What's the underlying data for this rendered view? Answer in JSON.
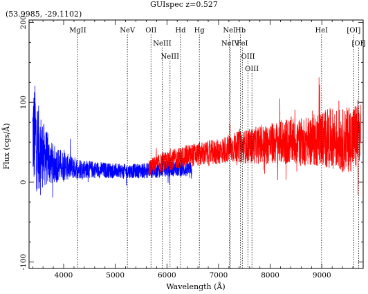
{
  "header": {
    "title": "GUIspec z=0.527",
    "coords": "(53.9985, -29.1102)"
  },
  "chart_data": {
    "type": "line",
    "title": "GUIspec z=0.527",
    "subtitle": "(53.9985, -29.1102)",
    "xlabel": "Wavelength (Å)",
    "ylabel": "Flux (cgs/Å)",
    "xlim": [
      3330,
      9800
    ],
    "ylim": [
      -108,
      203
    ],
    "xticks": [
      4000,
      5000,
      6000,
      7000,
      8000,
      9000
    ],
    "yticks": [
      -100,
      0,
      100,
      200
    ],
    "grid": false,
    "series": [
      {
        "color": "#0000ff",
        "envelope": {
          "x": [
            3400,
            3450,
            3500,
            3550,
            3600,
            3700,
            3800,
            3900,
            4000,
            4200,
            4500,
            4800,
            5100,
            5400,
            5650,
            5800,
            6000,
            6200,
            6400,
            6480
          ],
          "mid": [
            60,
            55,
            45,
            40,
            35,
            28,
            22,
            22,
            20,
            18,
            16,
            15,
            14,
            14,
            15,
            15,
            17,
            17,
            16,
            13
          ],
          "amp": [
            60,
            70,
            55,
            48,
            42,
            32,
            25,
            22,
            18,
            14,
            11,
            10,
            9,
            9,
            10,
            10,
            10,
            10,
            10,
            12
          ]
        }
      },
      {
        "color": "#ff0000",
        "envelope": {
          "x": [
            5650,
            5800,
            6000,
            6200,
            6400,
            6600,
            6800,
            7000,
            7200,
            7400,
            7600,
            7800,
            8000,
            8200,
            8400,
            8600,
            8800,
            9000,
            9200,
            9400,
            9600,
            9750
          ],
          "mid": [
            18,
            22,
            26,
            30,
            33,
            35,
            36,
            38,
            42,
            44,
            45,
            47,
            48,
            50,
            52,
            50,
            52,
            55,
            55,
            52,
            55,
            60
          ],
          "amp": [
            10,
            12,
            12,
            13,
            14,
            15,
            16,
            16,
            18,
            20,
            22,
            24,
            26,
            28,
            30,
            30,
            32,
            36,
            38,
            40,
            42,
            50
          ]
        }
      }
    ],
    "lines": [
      {
        "name": "MgII",
        "x": 4273,
        "row": 0
      },
      {
        "name": "NeV",
        "x": 5234,
        "row": 0
      },
      {
        "name": "OII",
        "x": 5691,
        "row": 0
      },
      {
        "name": "NeIII",
        "x": 5908,
        "row": 1
      },
      {
        "name": "NeIII",
        "x": 6060,
        "row": 2
      },
      {
        "name": "Hd",
        "x": 6263,
        "row": 0
      },
      {
        "name": "Hg",
        "x": 6628,
        "row": 0
      },
      {
        "name": "NeIV",
        "x": 7227,
        "row": 1
      },
      {
        "name": "NeI",
        "x": 7210,
        "row": 0
      },
      {
        "name": "FeI",
        "x": 7460,
        "row": 1
      },
      {
        "name": "Hb",
        "x": 7423,
        "row": 0
      },
      {
        "name": "OIII",
        "x": 7571,
        "row": 2
      },
      {
        "name": "OIII",
        "x": 7646,
        "row": 3
      },
      {
        "name": "HeI",
        "x": 8994,
        "row": 0
      },
      {
        "name": "[OI]",
        "x": 9617,
        "row": 0
      },
      {
        "name": "[OI]",
        "x": 9713,
        "row": 1
      }
    ]
  }
}
